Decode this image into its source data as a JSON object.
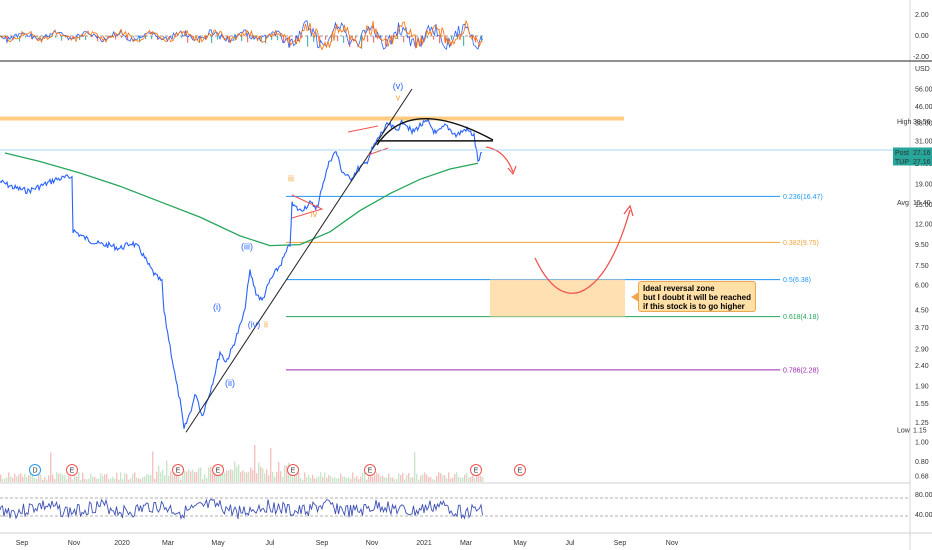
{
  "chart_data": {
    "type": "line",
    "scale": "log",
    "x_ticks": [
      "Sep",
      "Nov",
      "2020",
      "Mar",
      "May",
      "Jul",
      "Sep",
      "Nov",
      "2021",
      "Mar",
      "May",
      "Jul",
      "Sep",
      "Nov"
    ],
    "y_ticks": [
      "56.00",
      "46.00",
      "38.00",
      "31.00",
      "24.00",
      "19.00",
      "15.00",
      "12.00",
      "9.50",
      "7.50",
      "6.00",
      "4.50",
      "3.70",
      "2.90",
      "2.40",
      "1.90",
      "1.55",
      "1.25",
      "1.00",
      "0.80",
      "0.68"
    ],
    "y_range": [
      0.62,
      70
    ],
    "currency": "USD",
    "price_series": {
      "color": "#2962ff",
      "points": [
        [
          0,
          19.5
        ],
        [
          14,
          18.2
        ],
        [
          28,
          17.5
        ],
        [
          44,
          18.8
        ],
        [
          56,
          20.0
        ],
        [
          72,
          20.6
        ],
        [
          73,
          11.2
        ],
        [
          84,
          10.3
        ],
        [
          98,
          9.6
        ],
        [
          110,
          9.4
        ],
        [
          120,
          9.1
        ],
        [
          132,
          9.7
        ],
        [
          140,
          9.0
        ],
        [
          148,
          7.6
        ],
        [
          155,
          6.7
        ],
        [
          162,
          6.2
        ],
        [
          164,
          4.4
        ],
        [
          170,
          3.0
        ],
        [
          176,
          2.0
        ],
        [
          180,
          1.6
        ],
        [
          184,
          1.15
        ],
        [
          190,
          1.4
        ],
        [
          196,
          1.75
        ],
        [
          202,
          1.35
        ],
        [
          208,
          1.65
        ],
        [
          214,
          2.1
        ],
        [
          220,
          2.8
        ],
        [
          226,
          2.5
        ],
        [
          232,
          2.9
        ],
        [
          238,
          3.5
        ],
        [
          244,
          4.3
        ],
        [
          250,
          7.0
        ],
        [
          256,
          5.5
        ],
        [
          262,
          5.0
        ],
        [
          270,
          6.3
        ],
        [
          280,
          7.5
        ],
        [
          290,
          9.5
        ],
        [
          292,
          15.0
        ],
        [
          300,
          14.0
        ],
        [
          310,
          15.2
        ],
        [
          318,
          14.5
        ],
        [
          322,
          18.5
        ],
        [
          330,
          25.0
        ],
        [
          336,
          27.5
        ],
        [
          342,
          22.0
        ],
        [
          350,
          20.0
        ],
        [
          358,
          22.5
        ],
        [
          366,
          24.0
        ],
        [
          372,
          28.0
        ],
        [
          380,
          33.0
        ],
        [
          388,
          37.5
        ],
        [
          396,
          35.0
        ],
        [
          404,
          39.0
        ],
        [
          412,
          34.0
        ],
        [
          420,
          37.0
        ],
        [
          428,
          38.5
        ],
        [
          436,
          33.5
        ],
        [
          446,
          37.0
        ],
        [
          456,
          33.0
        ],
        [
          466,
          35.5
        ],
        [
          474,
          33.0
        ],
        [
          478,
          24.5
        ],
        [
          482,
          27.16
        ]
      ]
    },
    "sma_series": {
      "color": "#26a65b",
      "points": [
        [
          5,
          27.0
        ],
        [
          40,
          24.5
        ],
        [
          80,
          21.5
        ],
        [
          120,
          18.5
        ],
        [
          160,
          15.5
        ],
        [
          200,
          13.0
        ],
        [
          240,
          10.5
        ],
        [
          270,
          9.4
        ],
        [
          300,
          9.5
        ],
        [
          330,
          11.0
        ],
        [
          360,
          14.0
        ],
        [
          390,
          17.0
        ],
        [
          420,
          20.0
        ],
        [
          450,
          22.5
        ],
        [
          478,
          24.0
        ]
      ]
    },
    "fib_levels": [
      {
        "label": "0.236(16.47)",
        "value": 16.47,
        "color": "#2196f3"
      },
      {
        "label": "0.382(9.75)",
        "value": 9.75,
        "color": "#f2a33a"
      },
      {
        "label": "0.5(6.38)",
        "value": 6.38,
        "color": "#2196f3"
      },
      {
        "label": "0.618(4.18)",
        "value": 4.18,
        "color": "#26a65b"
      },
      {
        "label": "0.786(2.28)",
        "value": 2.28,
        "color": "#9c27b0"
      }
    ],
    "resistance_level": 40.0,
    "price_labels": [
      {
        "label": "High",
        "value": "38.56"
      },
      {
        "label": "Post",
        "value": "27.16"
      },
      {
        "label": "TUP",
        "value": "27.16"
      },
      {
        "label": "Avg",
        "value": "15.40"
      },
      {
        "label": "Low",
        "value": "1.15"
      }
    ],
    "wave_labels": [
      {
        "text": "(v)",
        "x": 398,
        "y": 56.0,
        "color": "#2962ff"
      },
      {
        "text": "v",
        "x": 398,
        "y": 49.0,
        "color": "#f2a33a"
      },
      {
        "text": "iii",
        "x": 291,
        "y": 19.5,
        "color": "#f2a33a"
      },
      {
        "text": "iv",
        "x": 314,
        "y": 13.0,
        "color": "#f2a33a"
      },
      {
        "text": "(iii)",
        "x": 247,
        "y": 9.0,
        "color": "#2962ff"
      },
      {
        "text": "(i)",
        "x": 217,
        "y": 4.5,
        "color": "#2962ff"
      },
      {
        "text": "(iv)",
        "x": 254,
        "y": 3.7,
        "color": "#2962ff"
      },
      {
        "text": "ii",
        "x": 266,
        "y": 3.7,
        "color": "#f2a33a"
      },
      {
        "text": "(ii)",
        "x": 230,
        "y": 1.9,
        "color": "#2962ff"
      }
    ],
    "events": [
      {
        "x": 35,
        "label": "D",
        "color": "#2196f3"
      },
      {
        "x": 72,
        "label": "E",
        "color": "#ef5350"
      },
      {
        "x": 178,
        "label": "E",
        "color": "#ef5350"
      },
      {
        "x": 218,
        "label": "E",
        "color": "#ef5350"
      },
      {
        "x": 293,
        "label": "E",
        "color": "#ef5350"
      },
      {
        "x": 370,
        "label": "E",
        "color": "#ef5350"
      },
      {
        "x": 476,
        "label": "E",
        "color": "#ef5350"
      },
      {
        "x": 520,
        "label": "E",
        "color": "#ef5350"
      }
    ],
    "top_indicator_ticks": [
      "2.00",
      "0.00",
      "-2.00"
    ],
    "rsi_ticks": [
      "80.00",
      "40.00"
    ]
  },
  "annotation": {
    "line1": "Ideal reversal zone",
    "line2": "but I doubt it will be reached",
    "line3": "if this stock is to go higher"
  }
}
